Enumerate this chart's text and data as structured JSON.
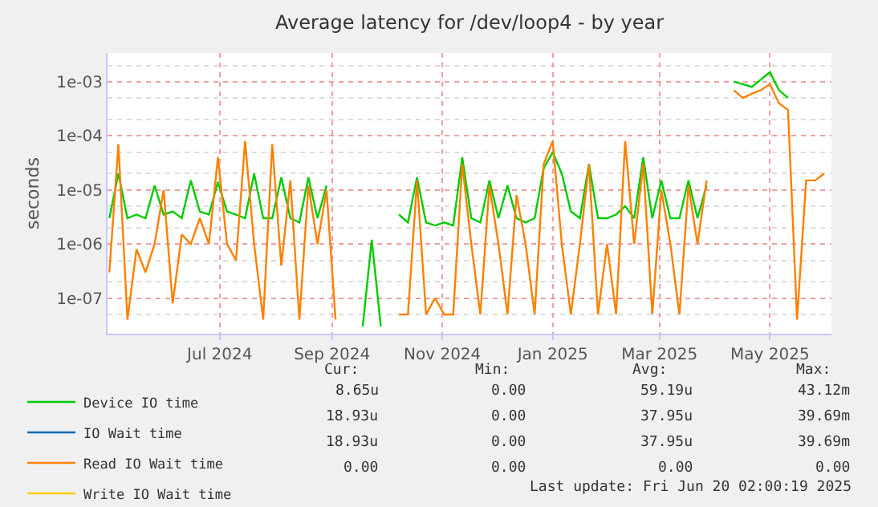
{
  "chart_data": {
    "type": "line",
    "title": "Average latency for /dev/loop4 - by year",
    "ylabel": "seconds",
    "x": [
      "2024-05-01",
      "2024-05-06",
      "2024-05-11",
      "2024-05-16",
      "2024-05-21",
      "2024-05-26",
      "2024-05-31",
      "2024-06-05",
      "2024-06-10",
      "2024-06-15",
      "2024-06-20",
      "2024-06-25",
      "2024-06-30",
      "2024-07-05",
      "2024-07-10",
      "2024-07-15",
      "2024-07-20",
      "2024-07-25",
      "2024-07-30",
      "2024-08-04",
      "2024-08-09",
      "2024-08-14",
      "2024-08-19",
      "2024-08-24",
      "2024-08-29",
      "2024-09-03",
      "2024-09-08",
      "2024-09-13",
      "2024-09-18",
      "2024-09-23",
      "2024-09-28",
      "2024-10-03",
      "2024-10-08",
      "2024-10-13",
      "2024-10-18",
      "2024-10-23",
      "2024-10-28",
      "2024-11-02",
      "2024-11-07",
      "2024-11-12",
      "2024-11-17",
      "2024-11-22",
      "2024-11-27",
      "2024-12-02",
      "2024-12-07",
      "2024-12-12",
      "2024-12-17",
      "2024-12-22",
      "2024-12-27",
      "2025-01-01",
      "2025-01-06",
      "2025-01-11",
      "2025-01-16",
      "2025-01-21",
      "2025-01-26",
      "2025-01-31",
      "2025-02-05",
      "2025-02-10",
      "2025-02-15",
      "2025-02-20",
      "2025-02-25",
      "2025-03-02",
      "2025-03-07",
      "2025-03-12",
      "2025-03-17",
      "2025-03-22",
      "2025-03-27",
      "2025-04-01",
      "2025-04-06",
      "2025-04-11",
      "2025-04-16",
      "2025-04-21",
      "2025-04-26",
      "2025-05-01",
      "2025-05-06",
      "2025-05-11",
      "2025-05-16",
      "2025-05-21",
      "2025-05-26",
      "2025-05-31"
    ],
    "series": [
      {
        "name": "Device IO time",
        "color": "#00cc00",
        "values": [
          3e-06,
          2e-05,
          3e-06,
          3.5e-06,
          3e-06,
          1.2e-05,
          3.5e-06,
          4e-06,
          3e-06,
          1.5e-05,
          4e-06,
          3.5e-06,
          1.4e-05,
          4e-06,
          3.5e-06,
          3e-06,
          2e-05,
          3e-06,
          3e-06,
          1.7e-05,
          3e-06,
          2.5e-06,
          1.7e-05,
          3e-06,
          1.2e-05,
          null,
          null,
          null,
          3e-08,
          1.2e-06,
          3e-08,
          null,
          3.5e-06,
          2.5e-06,
          1.7e-05,
          2.5e-06,
          2.2e-06,
          2.5e-06,
          2.2e-06,
          4e-05,
          3e-06,
          2.5e-06,
          1.5e-05,
          3e-06,
          1.2e-05,
          3e-06,
          2.5e-06,
          3e-06,
          2.5e-05,
          5e-05,
          2e-05,
          4e-06,
          3e-06,
          3e-05,
          3e-06,
          3e-06,
          3.5e-06,
          5e-06,
          3e-06,
          4e-05,
          3e-06,
          1.5e-05,
          3e-06,
          3e-06,
          1.5e-05,
          3e-06,
          1.2e-05,
          null,
          null,
          0.001,
          0.0009,
          0.0008,
          0.0011,
          0.0015,
          0.0007,
          0.0005,
          null,
          null,
          null,
          null
        ]
      },
      {
        "name": "IO Wait time",
        "color": "#0066b3",
        "values": [
          null,
          null,
          null,
          null,
          null,
          null,
          null,
          null,
          null,
          null,
          null,
          null,
          null,
          null,
          null,
          null,
          null,
          null,
          null,
          null,
          null,
          null,
          null,
          null,
          null,
          null,
          null,
          null,
          null,
          null,
          null,
          null,
          null,
          null,
          null,
          null,
          null,
          null,
          null,
          null,
          null,
          null,
          null,
          null,
          null,
          null,
          null,
          null,
          null,
          null,
          null,
          null,
          null,
          null,
          null,
          null,
          null,
          null,
          null,
          null,
          null,
          null,
          null,
          null,
          null,
          null,
          null,
          null,
          null,
          null,
          null,
          null,
          null,
          null,
          null,
          null,
          null,
          null,
          null,
          null
        ]
      },
      {
        "name": "Read IO Wait time",
        "color": "#ff8000",
        "values": [
          3e-07,
          7e-05,
          4e-08,
          8e-07,
          3e-07,
          1e-06,
          1e-05,
          8e-08,
          1.5e-06,
          1e-06,
          3e-06,
          1e-06,
          4e-05,
          1e-06,
          5e-07,
          8e-05,
          1e-06,
          4e-08,
          7e-05,
          4e-07,
          1.5e-05,
          4e-08,
          1.2e-05,
          1e-06,
          1e-05,
          4e-08,
          null,
          null,
          null,
          null,
          null,
          null,
          5e-08,
          5e-08,
          1.5e-05,
          5e-08,
          1e-07,
          5e-08,
          5e-08,
          3e-05,
          1e-06,
          5e-08,
          1.2e-05,
          1e-06,
          5e-08,
          8e-06,
          1e-06,
          5e-08,
          3e-05,
          8e-05,
          1e-06,
          5e-08,
          1e-06,
          3e-05,
          5e-08,
          1e-06,
          5e-08,
          8e-05,
          1e-06,
          3e-05,
          5e-08,
          1e-05,
          1e-06,
          5e-08,
          1.2e-05,
          1e-06,
          1.5e-05,
          null,
          null,
          0.0007,
          0.0005,
          0.0006,
          0.0007,
          0.0009,
          0.0004,
          0.0003,
          4e-08,
          1.5e-05,
          1.5e-05,
          2e-05
        ]
      },
      {
        "name": "Write IO Wait time",
        "color": "#ffcc00",
        "values": [
          null,
          null,
          null,
          null,
          null,
          null,
          null,
          null,
          null,
          null,
          null,
          null,
          null,
          null,
          null,
          null,
          null,
          null,
          null,
          null,
          null,
          null,
          null,
          null,
          null,
          null,
          null,
          null,
          null,
          null,
          null,
          null,
          null,
          null,
          null,
          null,
          null,
          null,
          null,
          null,
          null,
          null,
          null,
          null,
          null,
          null,
          null,
          null,
          null,
          null,
          null,
          null,
          null,
          null,
          null,
          null,
          null,
          null,
          null,
          null,
          null,
          null,
          null,
          null,
          null,
          null,
          null,
          null,
          null,
          null,
          null,
          null,
          null,
          null,
          null,
          null,
          null,
          null,
          null,
          null
        ]
      }
    ],
    "xlim": [
      "2024-04-30",
      "2025-06-04"
    ],
    "xticks": [
      {
        "value": "2024-07-01",
        "label": "Jul 2024"
      },
      {
        "value": "2024-09-01",
        "label": "Sep 2024"
      },
      {
        "value": "2024-11-01",
        "label": "Nov 2024"
      },
      {
        "value": "2025-01-01",
        "label": "Jan 2025"
      },
      {
        "value": "2025-03-01",
        "label": "Mar 2025"
      },
      {
        "value": "2025-05-01",
        "label": "May 2025"
      }
    ],
    "ylim": [
      2.2e-08,
      0.0034
    ],
    "yticks": [
      {
        "value": 1e-07,
        "label": "1e-07"
      },
      {
        "value": 1e-06,
        "label": "1e-06"
      },
      {
        "value": 1e-05,
        "label": "1e-05"
      },
      {
        "value": 0.0001,
        "label": "1e-04"
      },
      {
        "value": 0.001,
        "label": "1e-03"
      }
    ],
    "log": "y",
    "grid": true,
    "legend": "bottom",
    "marker": "none",
    "line_style": "solid",
    "annotations": [
      "Cur:",
      "Min:",
      "Avg:",
      "Max:",
      "8.65u",
      "0.00",
      "59.19u",
      "43.12m",
      "18.93u",
      "0.00",
      "37.95u",
      "39.69m",
      "18.93u",
      "0.00",
      "37.95u",
      "39.69m",
      "0.00",
      "0.00",
      "0.00",
      "0.00",
      "Last update: Fri Jun 20 02:00:19 2025"
    ]
  }
}
